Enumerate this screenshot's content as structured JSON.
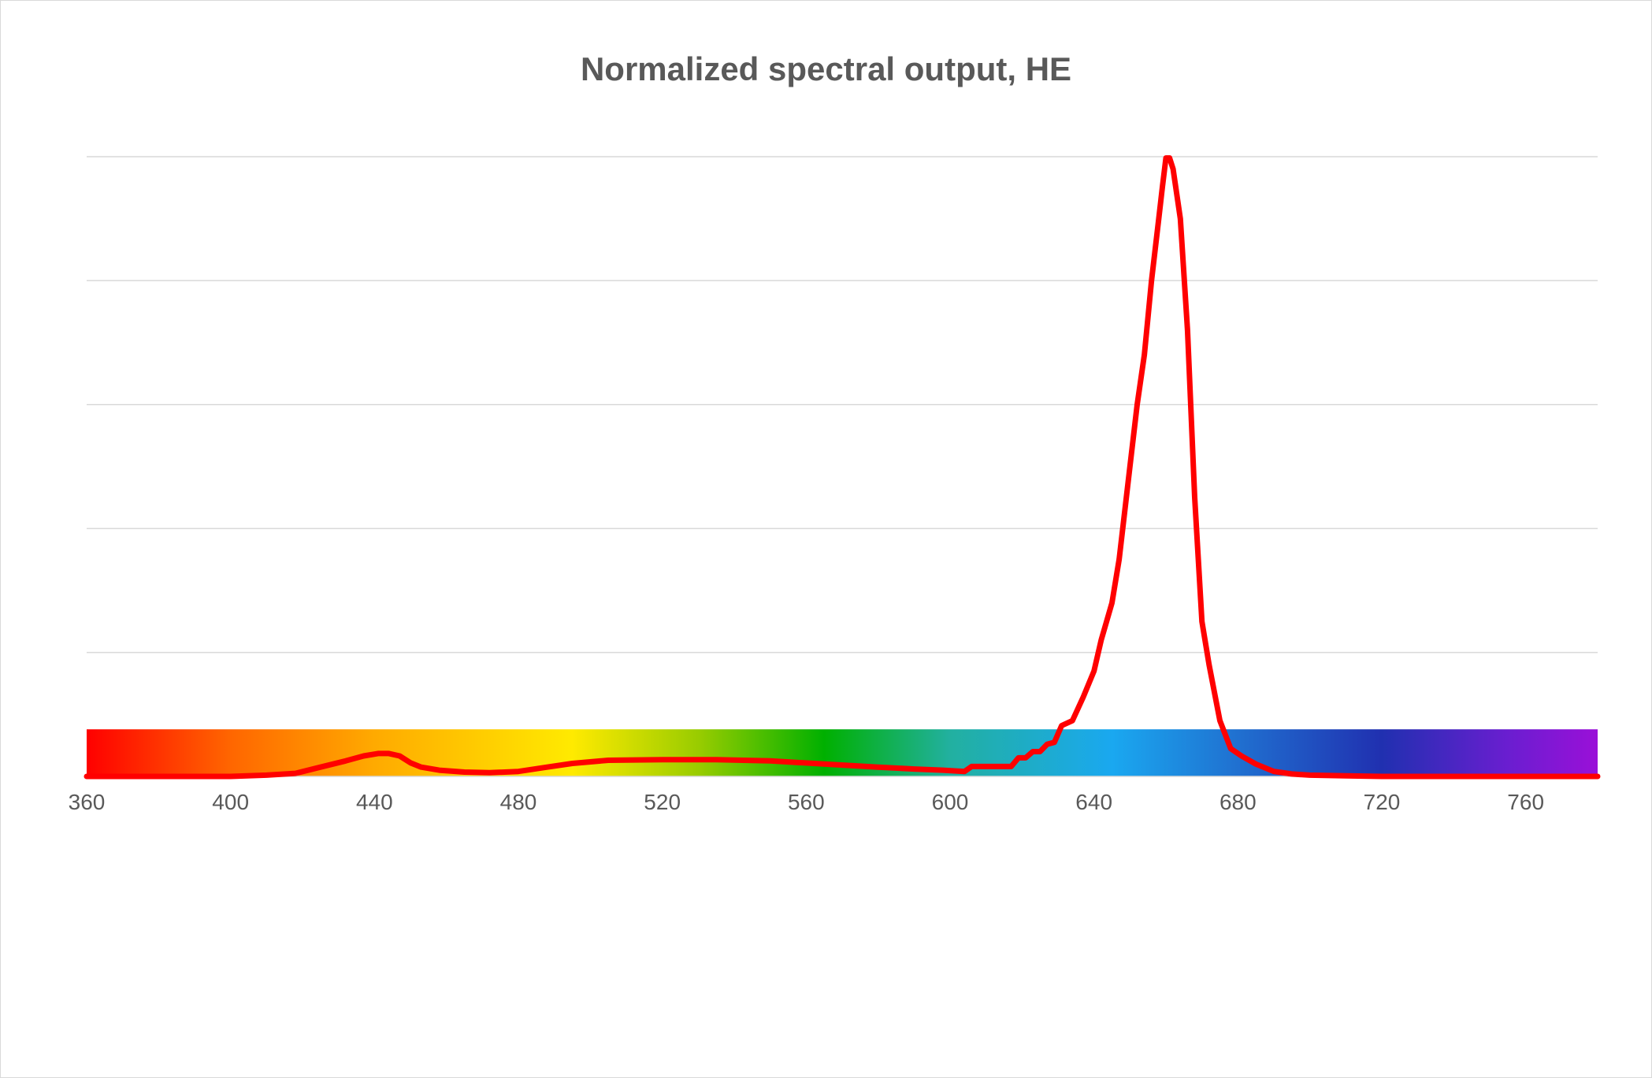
{
  "chart_data": {
    "type": "line",
    "title": "Normalized spectral output, HE",
    "xlabel": "",
    "ylabel": "",
    "xlim": [
      360,
      780
    ],
    "ylim": [
      0,
      1
    ],
    "x_ticks": [
      360,
      400,
      440,
      480,
      520,
      560,
      600,
      640,
      680,
      720,
      760
    ],
    "y_gridlines": [
      0.2,
      0.4,
      0.6,
      0.8,
      1.0
    ],
    "y_tick_labels_visible": false,
    "grid": true,
    "legend": "none",
    "background_band": {
      "description_colors": [
        {
          "wl": 360,
          "color": "#ff0000"
        },
        {
          "wl": 400,
          "color": "#ff6600"
        },
        {
          "wl": 440,
          "color": "#ffaa00"
        },
        {
          "wl": 495,
          "color": "#ffea00"
        },
        {
          "wl": 530,
          "color": "#99cc00"
        },
        {
          "wl": 565,
          "color": "#00b000"
        },
        {
          "wl": 600,
          "color": "#22b0a0"
        },
        {
          "wl": 645,
          "color": "#1aa8f0"
        },
        {
          "wl": 680,
          "color": "#2070d0"
        },
        {
          "wl": 720,
          "color": "#2030b0"
        },
        {
          "wl": 755,
          "color": "#6a1ed0"
        },
        {
          "wl": 780,
          "color": "#9a10d8"
        }
      ],
      "height_fraction": 0.076
    },
    "series": [
      {
        "color": "#ff0000",
        "x": [
          360,
          400,
          410,
          418,
          425,
          432,
          437,
          441,
          444,
          447,
          450,
          453,
          458,
          465,
          472,
          480,
          488,
          495,
          505,
          520,
          535,
          550,
          565,
          580,
          590,
          598,
          604,
          606,
          610,
          617,
          619,
          621,
          623,
          625,
          627,
          629,
          631,
          634,
          637,
          640,
          642,
          645,
          647,
          650,
          652,
          654,
          656,
          658,
          659,
          660,
          661,
          662,
          664,
          666,
          668,
          670,
          672,
          675,
          678,
          681,
          685,
          690,
          695,
          700,
          710,
          720,
          740,
          760,
          780
        ],
        "y": [
          0.0,
          0.0,
          0.002,
          0.005,
          0.015,
          0.025,
          0.033,
          0.037,
          0.037,
          0.033,
          0.022,
          0.015,
          0.01,
          0.007,
          0.006,
          0.008,
          0.015,
          0.021,
          0.026,
          0.027,
          0.027,
          0.025,
          0.02,
          0.015,
          0.012,
          0.01,
          0.008,
          0.016,
          0.016,
          0.016,
          0.03,
          0.03,
          0.04,
          0.04,
          0.052,
          0.055,
          0.082,
          0.09,
          0.128,
          0.17,
          0.22,
          0.28,
          0.35,
          0.5,
          0.6,
          0.68,
          0.8,
          0.9,
          0.95,
          0.998,
          0.998,
          0.98,
          0.9,
          0.72,
          0.45,
          0.25,
          0.18,
          0.09,
          0.045,
          0.033,
          0.02,
          0.008,
          0.004,
          0.002,
          0.001,
          0.0,
          0.0,
          0.0,
          0.0
        ]
      }
    ]
  }
}
